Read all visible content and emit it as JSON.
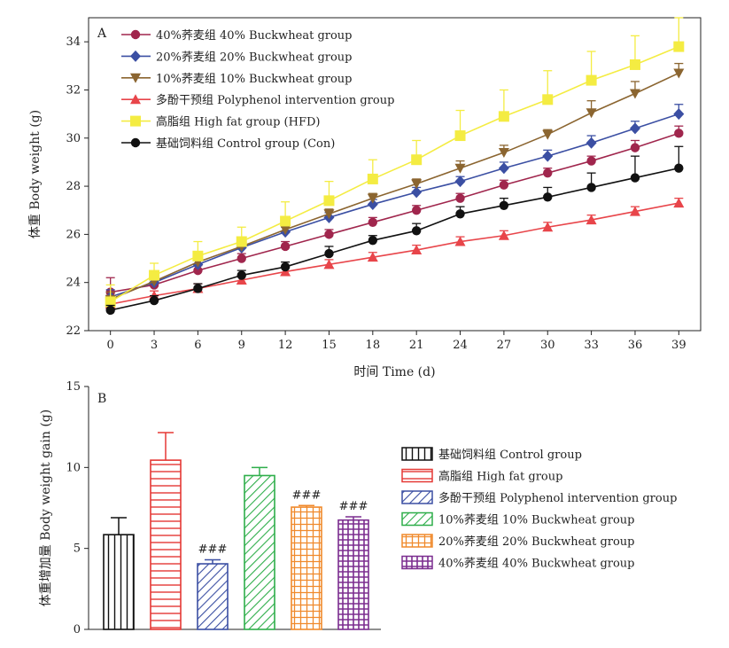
{
  "chart_data": [
    {
      "type": "line",
      "panel_label": "A",
      "xlabel": "时间 Time (d)",
      "ylabel": "体重 Body weight (g)",
      "x": [
        0,
        3,
        6,
        9,
        12,
        15,
        18,
        21,
        24,
        27,
        30,
        33,
        36,
        39
      ],
      "xlim": [
        -1.5,
        40.5
      ],
      "ylim": [
        22,
        35
      ],
      "yticks": [
        22,
        24,
        26,
        28,
        30,
        32,
        34
      ],
      "legend_position": "top-left",
      "series": [
        {
          "name": "40%荞麦组 40% Buckwheat group",
          "color": "#a0264d",
          "marker": "circle",
          "values": [
            23.6,
            23.9,
            24.5,
            25.0,
            25.5,
            26.0,
            26.5,
            27.0,
            27.5,
            28.05,
            28.55,
            29.05,
            29.6,
            30.2
          ],
          "errors": [
            0.6,
            0.3,
            0.2,
            0.2,
            0.2,
            0.2,
            0.2,
            0.2,
            0.2,
            0.2,
            0.2,
            0.2,
            0.3,
            0.3
          ]
        },
        {
          "name": "20%荞麦组 20% Buckwheat group",
          "color": "#3b4fa3",
          "marker": "diamond",
          "values": [
            23.4,
            24.0,
            24.75,
            25.45,
            26.1,
            26.7,
            27.25,
            27.75,
            28.2,
            28.75,
            29.25,
            29.8,
            30.4,
            31.0
          ],
          "errors": [
            0.3,
            0.3,
            0.2,
            0.2,
            0.2,
            0.2,
            0.2,
            0.2,
            0.2,
            0.25,
            0.25,
            0.3,
            0.3,
            0.4
          ]
        },
        {
          "name": "10%荞麦组 10% Buckwheat group",
          "color": "#8b6530",
          "marker": "triangle-down",
          "values": [
            23.3,
            24.05,
            24.85,
            25.5,
            26.2,
            26.85,
            27.5,
            28.1,
            28.75,
            29.4,
            30.15,
            31.05,
            31.85,
            32.7
          ],
          "errors": [
            0.3,
            0.3,
            0.2,
            0.2,
            0.2,
            0.2,
            0.2,
            0.2,
            0.3,
            0.3,
            0.2,
            0.5,
            0.5,
            0.4
          ]
        },
        {
          "name": "多酚干预组 Polyphenol intervention group",
          "color": "#e8454a",
          "marker": "triangle-up",
          "values": [
            23.1,
            23.45,
            23.75,
            24.1,
            24.45,
            24.75,
            25.05,
            25.35,
            25.7,
            25.95,
            26.3,
            26.6,
            26.95,
            27.3
          ],
          "errors": [
            0.2,
            0.2,
            0.2,
            0.2,
            0.2,
            0.2,
            0.2,
            0.2,
            0.2,
            0.2,
            0.2,
            0.2,
            0.2,
            0.2
          ]
        },
        {
          "name": "高脂组 High fat group (HFD)",
          "color": "#f4ec42",
          "marker": "square",
          "values": [
            23.2,
            24.3,
            25.1,
            25.7,
            26.55,
            27.4,
            28.3,
            29.1,
            30.1,
            30.9,
            31.6,
            32.4,
            33.05,
            33.8
          ],
          "errors": [
            0.7,
            0.5,
            0.6,
            0.6,
            0.8,
            0.8,
            0.8,
            0.8,
            1.05,
            1.1,
            1.2,
            1.2,
            1.2,
            1.2
          ]
        },
        {
          "name": "基础饲料组 Control group (Con)",
          "color": "#111111",
          "marker": "circle",
          "values": [
            22.85,
            23.25,
            23.75,
            24.3,
            24.65,
            25.2,
            25.75,
            26.15,
            26.85,
            27.2,
            27.55,
            27.95,
            28.35,
            28.75
          ],
          "errors": [
            0.2,
            0.2,
            0.2,
            0.2,
            0.2,
            0.3,
            0.2,
            0.3,
            0.3,
            0.3,
            0.4,
            0.6,
            0.9,
            0.9
          ]
        }
      ]
    },
    {
      "type": "bar",
      "panel_label": "B",
      "xlabel": "",
      "ylabel": "体重增加量 Body weight gain (g)",
      "ylim": [
        0,
        15
      ],
      "yticks": [
        0,
        5,
        10,
        15
      ],
      "legend_position": "right",
      "categories": [
        "基础饲料组 Control group",
        "高脂组 High fat group",
        "多酚干预组 Polyphenol intervention group",
        "10%荞麦组 10% Buckwheat group",
        "20%荞麦组 20% Buckwheat group",
        "40%荞麦组 40% Buckwheat group"
      ],
      "values": [
        5.85,
        10.45,
        4.05,
        9.5,
        7.55,
        6.75
      ],
      "errors": [
        1.05,
        1.7,
        0.25,
        0.5,
        0.1,
        0.2
      ],
      "annotations": [
        "",
        "",
        "###",
        "",
        "###",
        "###"
      ],
      "colors": [
        "#111111",
        "#e53935",
        "#3b4fa3",
        "#2eae4a",
        "#f08a2c",
        "#7b2d8f"
      ],
      "patterns": [
        "vertical",
        "horizontal",
        "diagonal",
        "diagonal",
        "grid",
        "grid"
      ]
    }
  ]
}
